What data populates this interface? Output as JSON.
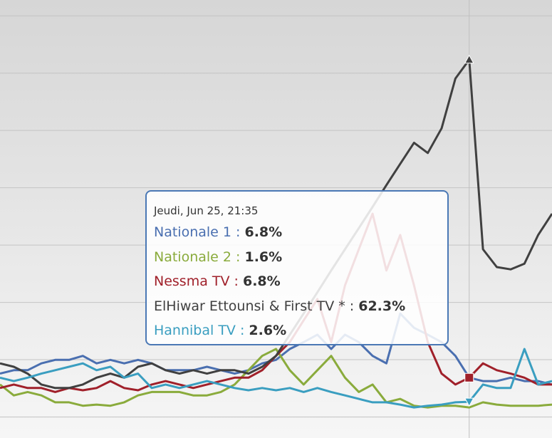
{
  "chart_data": {
    "type": "line",
    "ylim": [
      0,
      72.7
    ],
    "yticks": [
      0,
      10,
      20,
      30,
      40,
      50,
      60,
      70
    ],
    "grid": true,
    "series": [
      {
        "name": "Nationale 1",
        "color": "#4a6fb0",
        "values": [
          7.5,
          8.1,
          8.1,
          9.3,
          9.9,
          9.9,
          10.6,
          9.3,
          9.9,
          9.3,
          9.9,
          9.3,
          8.1,
          8.1,
          8.1,
          8.7,
          8.1,
          7.5,
          8.1,
          9.3,
          9.9,
          11.8,
          13.0,
          14.3,
          11.8,
          14.3,
          13.0,
          10.6,
          9.3,
          18.0,
          15.5,
          14.3,
          13.0,
          10.6,
          6.8,
          6.2,
          6.2,
          6.8,
          6.2,
          6.2,
          5.6
        ]
      },
      {
        "name": "Nationale 2",
        "color": "#8aab3c",
        "values": [
          5.6,
          3.7,
          4.3,
          3.7,
          2.5,
          2.5,
          1.9,
          2.1,
          1.9,
          2.5,
          3.7,
          4.3,
          4.3,
          4.3,
          3.7,
          3.7,
          4.3,
          5.6,
          8.1,
          10.6,
          11.8,
          8.1,
          5.6,
          8.1,
          10.6,
          6.8,
          4.3,
          5.6,
          2.5,
          3.1,
          1.9,
          1.6,
          1.9,
          1.9,
          1.6,
          2.5,
          2.1,
          1.9,
          1.9,
          1.9,
          2.1
        ]
      },
      {
        "name": "Nessma TV",
        "color": "#a0202a",
        "values": [
          5.0,
          5.6,
          5.0,
          5.0,
          4.3,
          5.0,
          4.6,
          5.0,
          6.2,
          5.0,
          4.6,
          5.6,
          6.2,
          5.6,
          5.0,
          5.6,
          6.2,
          6.8,
          6.8,
          8.1,
          10.6,
          13.0,
          16.8,
          20.5,
          13.0,
          22.9,
          29.2,
          35.4,
          25.5,
          31.7,
          22.9,
          13.0,
          7.5,
          5.6,
          6.8,
          9.3,
          8.1,
          7.5,
          6.8,
          5.6,
          5.6
        ]
      },
      {
        "name": "ElHiwar Ettounsi & First TV *",
        "color": "#404040",
        "values": [
          9.3,
          8.7,
          7.5,
          5.6,
          5.0,
          5.0,
          5.6,
          6.8,
          7.5,
          6.8,
          8.7,
          9.3,
          8.1,
          7.5,
          8.1,
          7.5,
          8.1,
          8.1,
          7.5,
          8.7,
          10.6,
          14.3,
          18.0,
          21.7,
          25.5,
          29.2,
          32.9,
          36.6,
          40.4,
          44.1,
          47.8,
          46.0,
          50.3,
          59.0,
          62.3,
          29.2,
          26.1,
          25.7,
          26.7,
          31.7,
          35.4
        ]
      },
      {
        "name": "Hannibal TV",
        "color": "#3a9ec0",
        "values": [
          6.8,
          6.2,
          6.8,
          7.5,
          8.1,
          8.7,
          9.3,
          8.1,
          8.7,
          6.8,
          7.5,
          5.0,
          5.6,
          5.0,
          5.6,
          6.2,
          5.6,
          5.0,
          4.6,
          5.0,
          4.6,
          5.0,
          4.3,
          5.0,
          4.3,
          3.7,
          3.1,
          2.5,
          2.5,
          2.1,
          1.6,
          1.9,
          2.1,
          2.5,
          2.6,
          5.6,
          5.0,
          5.0,
          11.8,
          5.6,
          6.2
        ]
      }
    ],
    "tooltip": {
      "title": "Jeudi, Jun 25, 21:35",
      "separator": " : ",
      "labels": [
        "6.8%",
        "1.6%",
        "6.8%",
        "62.3%",
        "2.6%"
      ]
    }
  }
}
